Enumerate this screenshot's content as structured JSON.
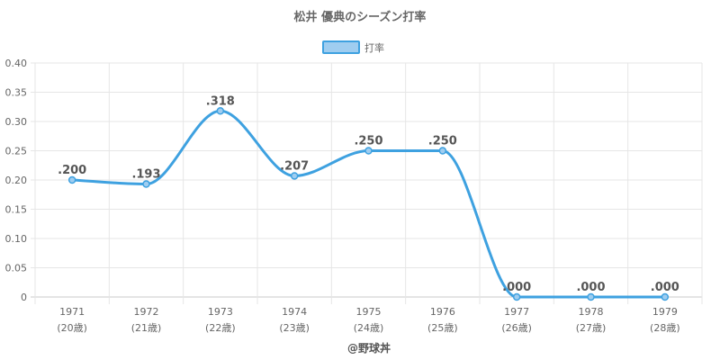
{
  "chart_data": {
    "type": "line",
    "title": "松井 優典のシーズン打率",
    "legend": {
      "label": "打率",
      "placement": "top"
    },
    "categories": [
      "1971",
      "1972",
      "1973",
      "1974",
      "1975",
      "1976",
      "1977",
      "1978",
      "1979"
    ],
    "category_sub": [
      "(20歳)",
      "(21歳)",
      "(22歳)",
      "(23歳)",
      "(24歳)",
      "(25歳)",
      "(26歳)",
      "(27歳)",
      "(28歳)"
    ],
    "series": [
      {
        "name": "打率",
        "values": [
          0.2,
          0.193,
          0.318,
          0.207,
          0.25,
          0.25,
          0.0,
          0.0,
          0.0
        ],
        "labels": [
          ".200",
          ".193",
          ".318",
          ".207",
          ".250",
          ".250",
          ".000",
          ".000",
          ".000"
        ]
      }
    ],
    "ylim": [
      0,
      0.4
    ],
    "yticks": [
      "0",
      "0.05",
      "0.10",
      "0.15",
      "0.20",
      "0.25",
      "0.30",
      "0.35",
      "0.40"
    ],
    "grid": true,
    "colors": {
      "line": "#3ea1e0",
      "fill": "#9fcdf0"
    }
  },
  "credit": "@野球丼"
}
